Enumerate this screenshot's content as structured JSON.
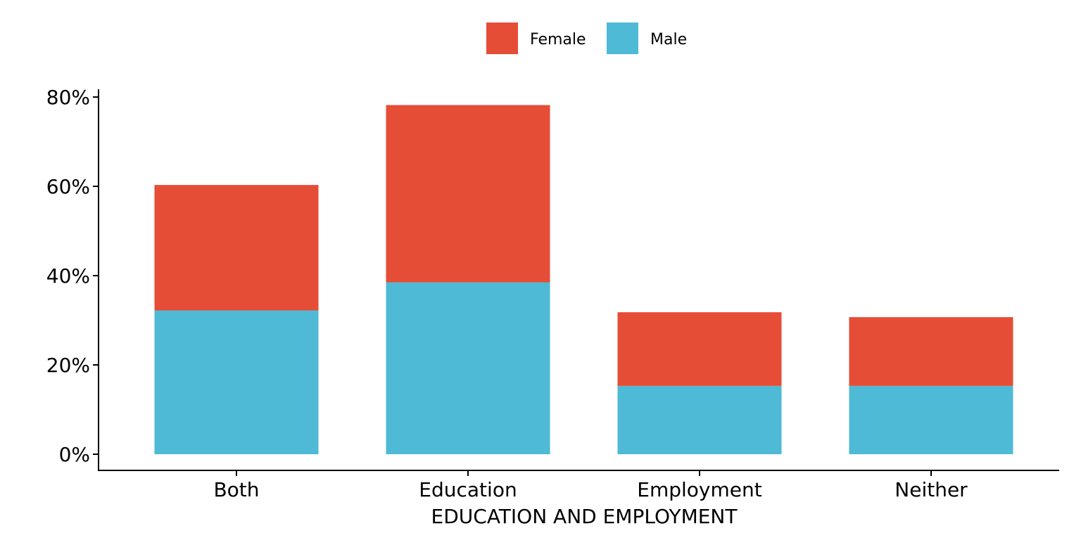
{
  "chart_data": {
    "type": "bar",
    "stacked": true,
    "categories": [
      "Both",
      "Education",
      "Employment",
      "Neither"
    ],
    "series": [
      {
        "name": "Male",
        "color": "#4EBAD6",
        "values": [
          32.2,
          38.5,
          15.3,
          15.3
        ]
      },
      {
        "name": "Female",
        "color": "#E64D36",
        "values": [
          28.1,
          39.7,
          16.5,
          15.4
        ]
      }
    ],
    "legend_order": [
      "Female",
      "Male"
    ],
    "xlabel": "EDUCATION AND EMPLOYMENT",
    "ylabel": "",
    "ylim": [
      0,
      80
    ],
    "yticks": [
      0,
      20,
      40,
      60,
      80
    ],
    "ytick_labels": [
      "0%",
      "20%",
      "40%",
      "60%",
      "80%"
    ],
    "grid": false,
    "legend_position": "top"
  }
}
